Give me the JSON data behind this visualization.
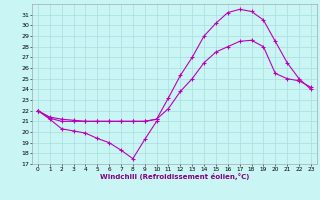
{
  "xlabel": "Windchill (Refroidissement éolien,°C)",
  "background_color": "#caf5f5",
  "grid_color": "#aadddd",
  "line_color": "#bb00bb",
  "xlim": [
    -0.5,
    23.5
  ],
  "ylim": [
    17,
    32
  ],
  "xticks": [
    0,
    1,
    2,
    3,
    4,
    5,
    6,
    7,
    8,
    9,
    10,
    11,
    12,
    13,
    14,
    15,
    16,
    17,
    18,
    19,
    20,
    21,
    22,
    23
  ],
  "yticks": [
    17,
    18,
    19,
    20,
    21,
    22,
    23,
    24,
    25,
    26,
    27,
    28,
    29,
    30,
    31
  ],
  "series1_x": [
    0,
    1,
    2,
    3,
    4,
    5,
    6,
    7,
    8,
    9,
    10
  ],
  "series1_y": [
    22,
    21.2,
    20.3,
    20.1,
    19.9,
    19.4,
    19.0,
    18.3,
    17.5,
    19.3,
    21.0
  ],
  "series2_x": [
    0,
    1,
    2,
    3,
    4,
    5,
    6,
    7,
    8,
    9,
    10,
    11,
    12,
    13,
    14,
    15,
    16,
    17,
    18,
    19,
    20,
    21,
    22,
    23
  ],
  "series2_y": [
    22,
    21.4,
    21.2,
    21.1,
    21.0,
    21.0,
    21.0,
    21.0,
    21.0,
    21.0,
    21.2,
    22.2,
    23.8,
    25.0,
    26.5,
    27.5,
    28.0,
    28.5,
    28.6,
    28.0,
    25.5,
    25.0,
    24.8,
    24.2
  ],
  "series3_x": [
    0,
    1,
    2,
    3,
    4,
    5,
    6,
    7,
    8,
    9,
    10,
    11,
    12,
    13,
    14,
    15,
    16,
    17,
    18,
    19,
    20,
    21,
    22,
    23
  ],
  "series3_y": [
    22,
    21.3,
    21.0,
    21.0,
    21.0,
    21.0,
    21.0,
    21.0,
    21.0,
    21.0,
    21.2,
    23.2,
    25.3,
    27.0,
    29.0,
    30.2,
    31.2,
    31.5,
    31.3,
    30.5,
    28.5,
    26.5,
    25.0,
    24.0
  ]
}
